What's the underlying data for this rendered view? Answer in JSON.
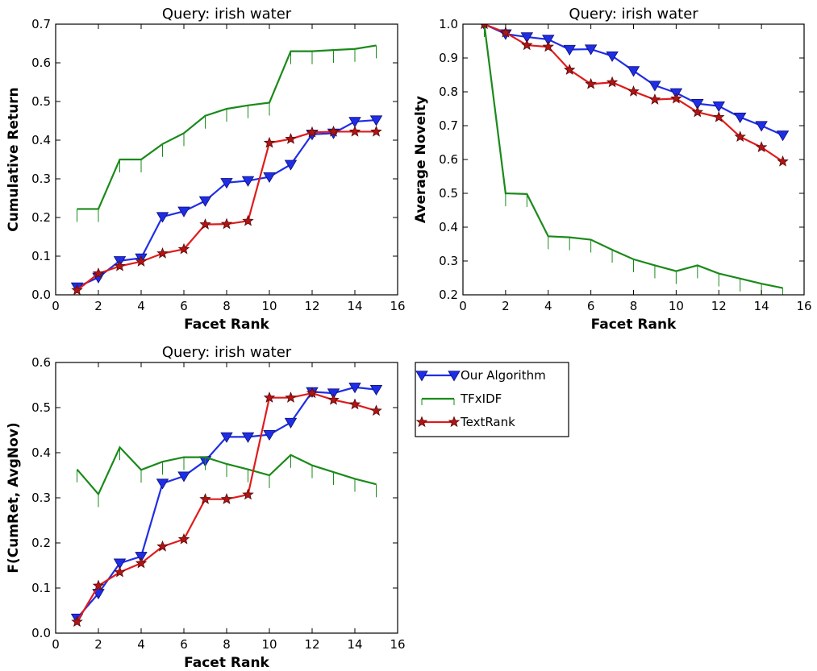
{
  "chart_data": [
    {
      "type": "line",
      "title": "Query: irish water",
      "xlabel": "Facet Rank",
      "ylabel": "Cumulative Return",
      "xlim": [
        0,
        16
      ],
      "ylim": [
        0,
        0.7
      ],
      "xticks": [
        "0",
        "2",
        "4",
        "6",
        "8",
        "10",
        "12",
        "14",
        "16"
      ],
      "yticks": [
        "0.0",
        "0.1",
        "0.2",
        "0.3",
        "0.4",
        "0.5",
        "0.6",
        "0.7"
      ],
      "x": [
        1,
        2,
        3,
        4,
        5,
        6,
        7,
        8,
        9,
        10,
        11,
        12,
        13,
        14,
        15
      ],
      "series": [
        {
          "name": "Our Algorithm",
          "values": [
            0.02,
            0.045,
            0.088,
            0.095,
            0.202,
            0.216,
            0.243,
            0.29,
            0.295,
            0.305,
            0.337,
            0.415,
            0.418,
            0.448,
            0.452
          ]
        },
        {
          "name": "TFxIDF",
          "values": [
            0.222,
            0.222,
            0.35,
            0.35,
            0.39,
            0.418,
            0.463,
            0.481,
            0.49,
            0.497,
            0.63,
            0.63,
            0.633,
            0.636,
            0.645
          ]
        },
        {
          "name": "TextRank",
          "values": [
            0.012,
            0.055,
            0.074,
            0.086,
            0.107,
            0.118,
            0.182,
            0.183,
            0.191,
            0.393,
            0.403,
            0.42,
            0.422,
            0.422,
            0.422
          ]
        }
      ]
    },
    {
      "type": "line",
      "title": "Query: irish water",
      "xlabel": "Facet Rank",
      "ylabel": "Average Novelty",
      "xlim": [
        0,
        16
      ],
      "ylim": [
        0.2,
        1.0
      ],
      "xticks": [
        "0",
        "2",
        "4",
        "6",
        "8",
        "10",
        "12",
        "14",
        "16"
      ],
      "yticks": [
        "0.2",
        "0.3",
        "0.4",
        "0.5",
        "0.6",
        "0.7",
        "0.8",
        "0.9",
        "1.0"
      ],
      "x": [
        1,
        2,
        3,
        4,
        5,
        6,
        7,
        8,
        9,
        10,
        11,
        12,
        13,
        14,
        15
      ],
      "series": [
        {
          "name": "Our Algorithm",
          "values": [
            1.0,
            0.971,
            0.962,
            0.955,
            0.925,
            0.926,
            0.906,
            0.862,
            0.819,
            0.797,
            0.765,
            0.758,
            0.725,
            0.7,
            0.672
          ]
        },
        {
          "name": "TFxIDF",
          "values": [
            1.0,
            0.5,
            0.498,
            0.373,
            0.37,
            0.363,
            0.333,
            0.305,
            0.287,
            0.27,
            0.287,
            0.263,
            0.248,
            0.233,
            0.22
          ]
        },
        {
          "name": "TextRank",
          "values": [
            1.0,
            0.975,
            0.938,
            0.933,
            0.865,
            0.823,
            0.828,
            0.801,
            0.777,
            0.78,
            0.74,
            0.725,
            0.667,
            0.636,
            0.594
          ]
        }
      ]
    },
    {
      "type": "line",
      "title": "Query: irish water",
      "xlabel": "Facet Rank",
      "ylabel": "F(CumRet, AvgNov)",
      "xlim": [
        0,
        16
      ],
      "ylim": [
        0,
        0.6
      ],
      "xticks": [
        "0",
        "2",
        "4",
        "6",
        "8",
        "10",
        "12",
        "14",
        "16"
      ],
      "yticks": [
        "0.0",
        "0.1",
        "0.2",
        "0.3",
        "0.4",
        "0.5",
        "0.6"
      ],
      "x": [
        1,
        2,
        3,
        4,
        5,
        6,
        7,
        8,
        9,
        10,
        11,
        12,
        13,
        14,
        15
      ],
      "series": [
        {
          "name": "Our Algorithm",
          "values": [
            0.033,
            0.088,
            0.155,
            0.17,
            0.332,
            0.348,
            0.382,
            0.435,
            0.435,
            0.44,
            0.467,
            0.535,
            0.532,
            0.545,
            0.54
          ]
        },
        {
          "name": "TFxIDF",
          "values": [
            0.363,
            0.308,
            0.412,
            0.362,
            0.38,
            0.39,
            0.39,
            0.375,
            0.363,
            0.35,
            0.395,
            0.372,
            0.357,
            0.342,
            0.33
          ]
        },
        {
          "name": "TextRank",
          "values": [
            0.025,
            0.105,
            0.135,
            0.155,
            0.192,
            0.208,
            0.297,
            0.297,
            0.307,
            0.522,
            0.522,
            0.532,
            0.517,
            0.507,
            0.493
          ]
        }
      ]
    }
  ],
  "legend": {
    "placement": "right-of-bottom-left-panel",
    "entries": [
      {
        "label": "Our Algorithm",
        "color": "#1f2ee6",
        "marker": "triangle-down"
      },
      {
        "label": "TFxIDF",
        "color": "#1a8a1a",
        "marker": "none"
      },
      {
        "label": "TextRank",
        "color": "#e01b1b",
        "marker": "star"
      }
    ]
  },
  "colors": {
    "our_algorithm": "#1f2ee6",
    "tfxidf": "#1a8a1a",
    "textrank": "#e01b1b"
  }
}
